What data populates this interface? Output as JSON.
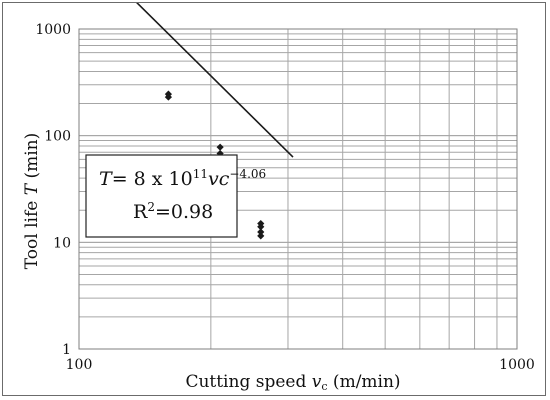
{
  "chart_data": {
    "type": "scatter",
    "xscale": "log",
    "yscale": "log",
    "xlim": [
      100,
      1000
    ],
    "ylim": [
      1,
      1000
    ],
    "grid": true,
    "xlabel": {
      "main": "Cutting speed ",
      "var": "v",
      "sub": "c",
      "unit": " (m/min)"
    },
    "ylabel": {
      "main": "Tool life ",
      "var": "T",
      "unit": " (min)"
    },
    "xticks": [
      {
        "value": 100,
        "label": "100"
      },
      {
        "value": 1000,
        "label": "1000"
      }
    ],
    "yticks": [
      {
        "value": 1,
        "label": "1"
      },
      {
        "value": 10,
        "label": "10"
      },
      {
        "value": 100,
        "label": "100"
      },
      {
        "value": 1000,
        "label": "1000"
      }
    ],
    "points": [
      {
        "x": 160,
        "y": 245
      },
      {
        "x": 160,
        "y": 230
      },
      {
        "x": 210,
        "y": 78
      },
      {
        "x": 210,
        "y": 68
      },
      {
        "x": 210,
        "y": 50
      },
      {
        "x": 260,
        "y": 15
      },
      {
        "x": 260,
        "y": 14
      },
      {
        "x": 260,
        "y": 12.5
      },
      {
        "x": 260,
        "y": 11.5
      }
    ],
    "trendline": {
      "coefficient": 800000000000,
      "exponent": -4.06,
      "x_range": [
        118,
        308
      ]
    },
    "annotation": {
      "lhs_var": "T",
      "lhs_rest": "= 8 x 10",
      "exp1": "11",
      "var2": "vc",
      "exp2": "−4.06",
      "r2_prefix": "R",
      "r2_sup": "2",
      "r2_value": "=0.98"
    },
    "colors": {
      "points": "#1a1a1a",
      "line": "#1a1a1a",
      "grid": "#a6a6a6",
      "axis": "#7f7f7f"
    }
  }
}
